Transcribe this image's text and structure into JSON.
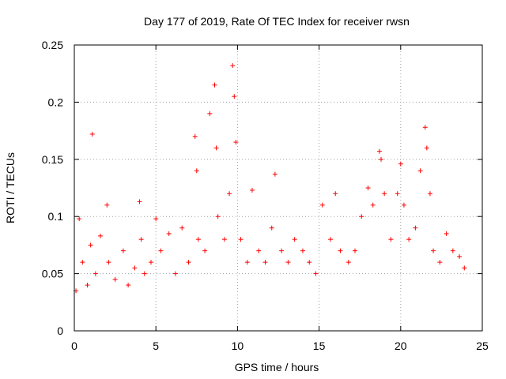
{
  "chart_data": {
    "type": "scatter",
    "title": "Day 177 of 2019, Rate Of TEC Index for receiver rwsn",
    "xlabel": "GPS time / hours",
    "ylabel": "ROTI / TECUs",
    "xlim": [
      0,
      25
    ],
    "ylim": [
      0,
      0.25
    ],
    "grid": true,
    "marker": "+",
    "color": "#ff0000",
    "xticks": [
      "0",
      "5",
      "10",
      "15",
      "20",
      "25"
    ],
    "yticks": [
      "0",
      "0.05",
      "0.1",
      "0.15",
      "0.2",
      "0.25"
    ],
    "series": [
      {
        "name": "ROTI",
        "x": [
          0.1,
          0.3,
          0.5,
          0.8,
          1.0,
          1.1,
          1.3,
          1.6,
          2.0,
          2.1,
          2.5,
          3.0,
          3.3,
          3.7,
          4.0,
          4.1,
          4.3,
          4.7,
          5.0,
          5.3,
          5.8,
          6.2,
          6.6,
          7.0,
          7.4,
          7.5,
          7.6,
          8.0,
          8.3,
          8.6,
          8.7,
          8.8,
          9.2,
          9.5,
          9.7,
          9.8,
          9.9,
          10.2,
          10.6,
          10.9,
          11.3,
          11.7,
          12.1,
          12.3,
          12.7,
          13.1,
          13.5,
          14.0,
          14.4,
          14.8,
          15.2,
          15.7,
          16.0,
          16.3,
          16.8,
          17.2,
          17.6,
          18.0,
          18.3,
          18.7,
          18.8,
          19.0,
          19.4,
          19.8,
          20.0,
          20.2,
          20.5,
          20.9,
          21.2,
          21.5,
          21.6,
          21.8,
          22.0,
          22.4,
          22.8,
          23.2,
          23.6,
          23.9
        ],
        "y": [
          0.035,
          0.098,
          0.06,
          0.04,
          0.075,
          0.172,
          0.05,
          0.083,
          0.11,
          0.06,
          0.045,
          0.07,
          0.04,
          0.055,
          0.113,
          0.08,
          0.05,
          0.06,
          0.098,
          0.07,
          0.085,
          0.05,
          0.09,
          0.06,
          0.17,
          0.14,
          0.08,
          0.07,
          0.19,
          0.215,
          0.16,
          0.1,
          0.08,
          0.12,
          0.232,
          0.205,
          0.165,
          0.08,
          0.06,
          0.123,
          0.07,
          0.06,
          0.09,
          0.137,
          0.07,
          0.06,
          0.08,
          0.07,
          0.06,
          0.05,
          0.11,
          0.08,
          0.12,
          0.07,
          0.06,
          0.07,
          0.1,
          0.125,
          0.11,
          0.157,
          0.15,
          0.12,
          0.08,
          0.12,
          0.146,
          0.11,
          0.08,
          0.09,
          0.14,
          0.178,
          0.16,
          0.12,
          0.07,
          0.06,
          0.085,
          0.07,
          0.065,
          0.055
        ]
      }
    ]
  }
}
